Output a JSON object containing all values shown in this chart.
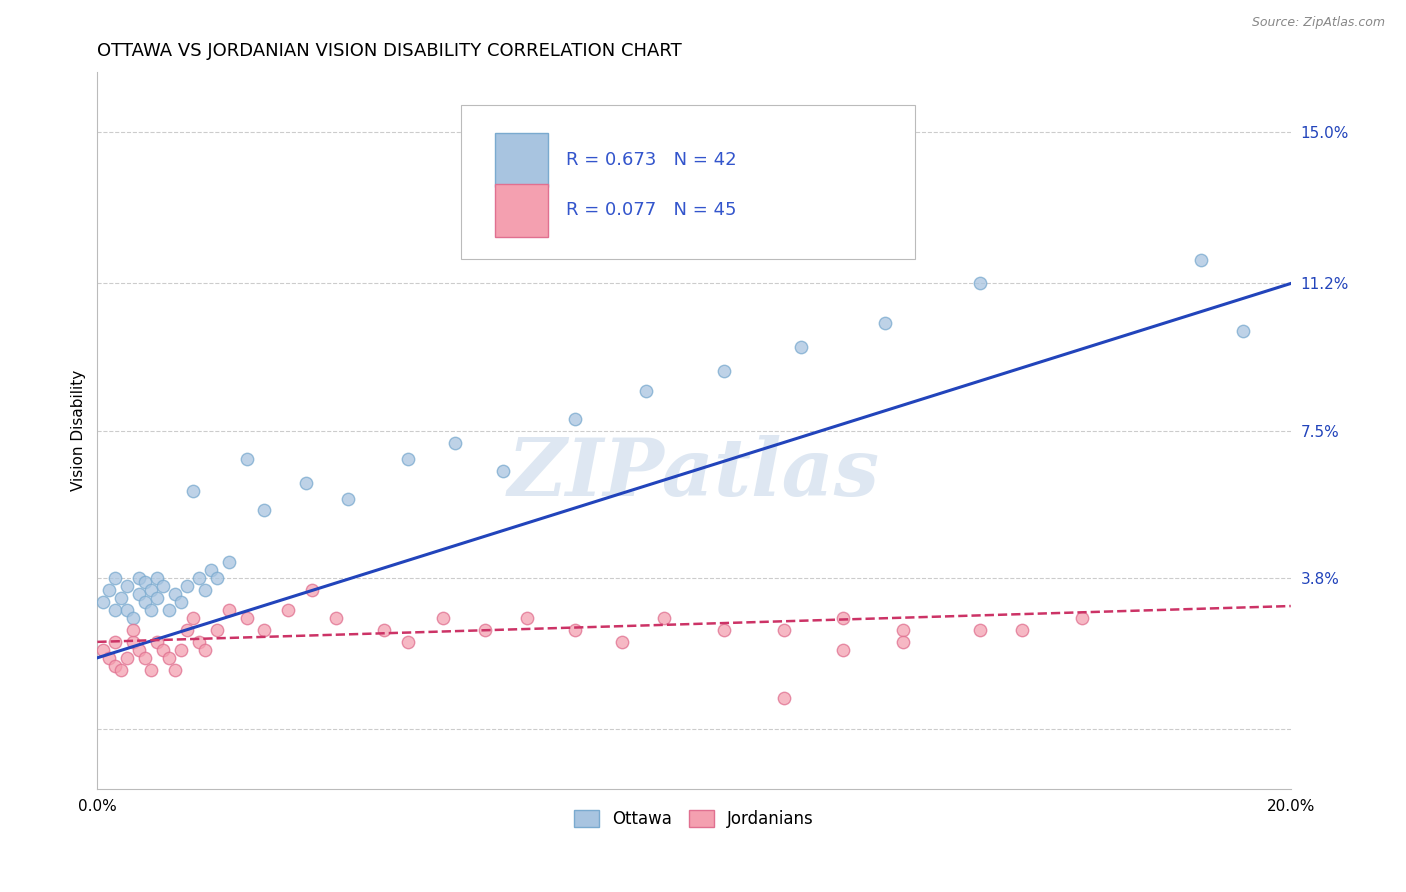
{
  "title": "OTTAWA VS JORDANIAN VISION DISABILITY CORRELATION CHART",
  "source": "Source: ZipAtlas.com",
  "ylabel": "Vision Disability",
  "xlim": [
    0.0,
    0.2
  ],
  "ylim": [
    -0.015,
    0.165
  ],
  "yticks": [
    0.0,
    0.038,
    0.075,
    0.112,
    0.15
  ],
  "ytick_labels": [
    "",
    "3.8%",
    "7.5%",
    "11.2%",
    "15.0%"
  ],
  "xticks": [
    0.0,
    0.05,
    0.1,
    0.15,
    0.2
  ],
  "xtick_labels": [
    "0.0%",
    "",
    "",
    "",
    "20.0%"
  ],
  "grid_color": "#cccccc",
  "background_color": "#ffffff",
  "ottawa_color": "#a8c4e0",
  "ottawa_edge_color": "#7aaacf",
  "jordanian_color": "#f4a0b0",
  "jordanian_edge_color": "#e07090",
  "ottawa_line_color": "#2244bb",
  "jordanian_line_color": "#cc3366",
  "legend_color": "#3355cc",
  "ottawa_R": "0.673",
  "ottawa_N": "42",
  "jordanian_R": "0.077",
  "jordanian_N": "45",
  "watermark_text": "ZIPatlas",
  "watermark_color": "#c8d8ea",
  "ottawa_line_x0": 0.0,
  "ottawa_line_y0": 0.018,
  "ottawa_line_x1": 0.2,
  "ottawa_line_y1": 0.112,
  "jordanian_line_x0": 0.0,
  "jordanian_line_y0": 0.022,
  "jordanian_line_x1": 0.2,
  "jordanian_line_y1": 0.031,
  "ottawa_x": [
    0.001,
    0.002,
    0.003,
    0.003,
    0.004,
    0.005,
    0.005,
    0.006,
    0.007,
    0.007,
    0.008,
    0.008,
    0.009,
    0.009,
    0.01,
    0.01,
    0.011,
    0.012,
    0.013,
    0.014,
    0.015,
    0.016,
    0.017,
    0.018,
    0.019,
    0.02,
    0.022,
    0.025,
    0.028,
    0.035,
    0.042,
    0.052,
    0.06,
    0.068,
    0.08,
    0.092,
    0.105,
    0.118,
    0.132,
    0.148,
    0.185,
    0.192
  ],
  "ottawa_y": [
    0.032,
    0.035,
    0.03,
    0.038,
    0.033,
    0.03,
    0.036,
    0.028,
    0.034,
    0.038,
    0.032,
    0.037,
    0.03,
    0.035,
    0.033,
    0.038,
    0.036,
    0.03,
    0.034,
    0.032,
    0.036,
    0.06,
    0.038,
    0.035,
    0.04,
    0.038,
    0.042,
    0.068,
    0.055,
    0.062,
    0.058,
    0.068,
    0.072,
    0.065,
    0.078,
    0.085,
    0.09,
    0.096,
    0.102,
    0.112,
    0.118,
    0.1
  ],
  "jordanian_x": [
    0.001,
    0.002,
    0.003,
    0.003,
    0.004,
    0.005,
    0.006,
    0.006,
    0.007,
    0.008,
    0.009,
    0.01,
    0.011,
    0.012,
    0.013,
    0.014,
    0.015,
    0.016,
    0.017,
    0.018,
    0.02,
    0.022,
    0.025,
    0.028,
    0.032,
    0.036,
    0.04,
    0.048,
    0.052,
    0.058,
    0.065,
    0.072,
    0.08,
    0.088,
    0.095,
    0.105,
    0.115,
    0.125,
    0.135,
    0.148,
    0.155,
    0.165,
    0.115,
    0.125,
    0.135
  ],
  "jordanian_y": [
    0.02,
    0.018,
    0.022,
    0.016,
    0.015,
    0.018,
    0.022,
    0.025,
    0.02,
    0.018,
    0.015,
    0.022,
    0.02,
    0.018,
    0.015,
    0.02,
    0.025,
    0.028,
    0.022,
    0.02,
    0.025,
    0.03,
    0.028,
    0.025,
    0.03,
    0.035,
    0.028,
    0.025,
    0.022,
    0.028,
    0.025,
    0.028,
    0.025,
    0.022,
    0.028,
    0.025,
    0.025,
    0.028,
    0.025,
    0.025,
    0.025,
    0.028,
    0.008,
    0.02,
    0.022
  ]
}
